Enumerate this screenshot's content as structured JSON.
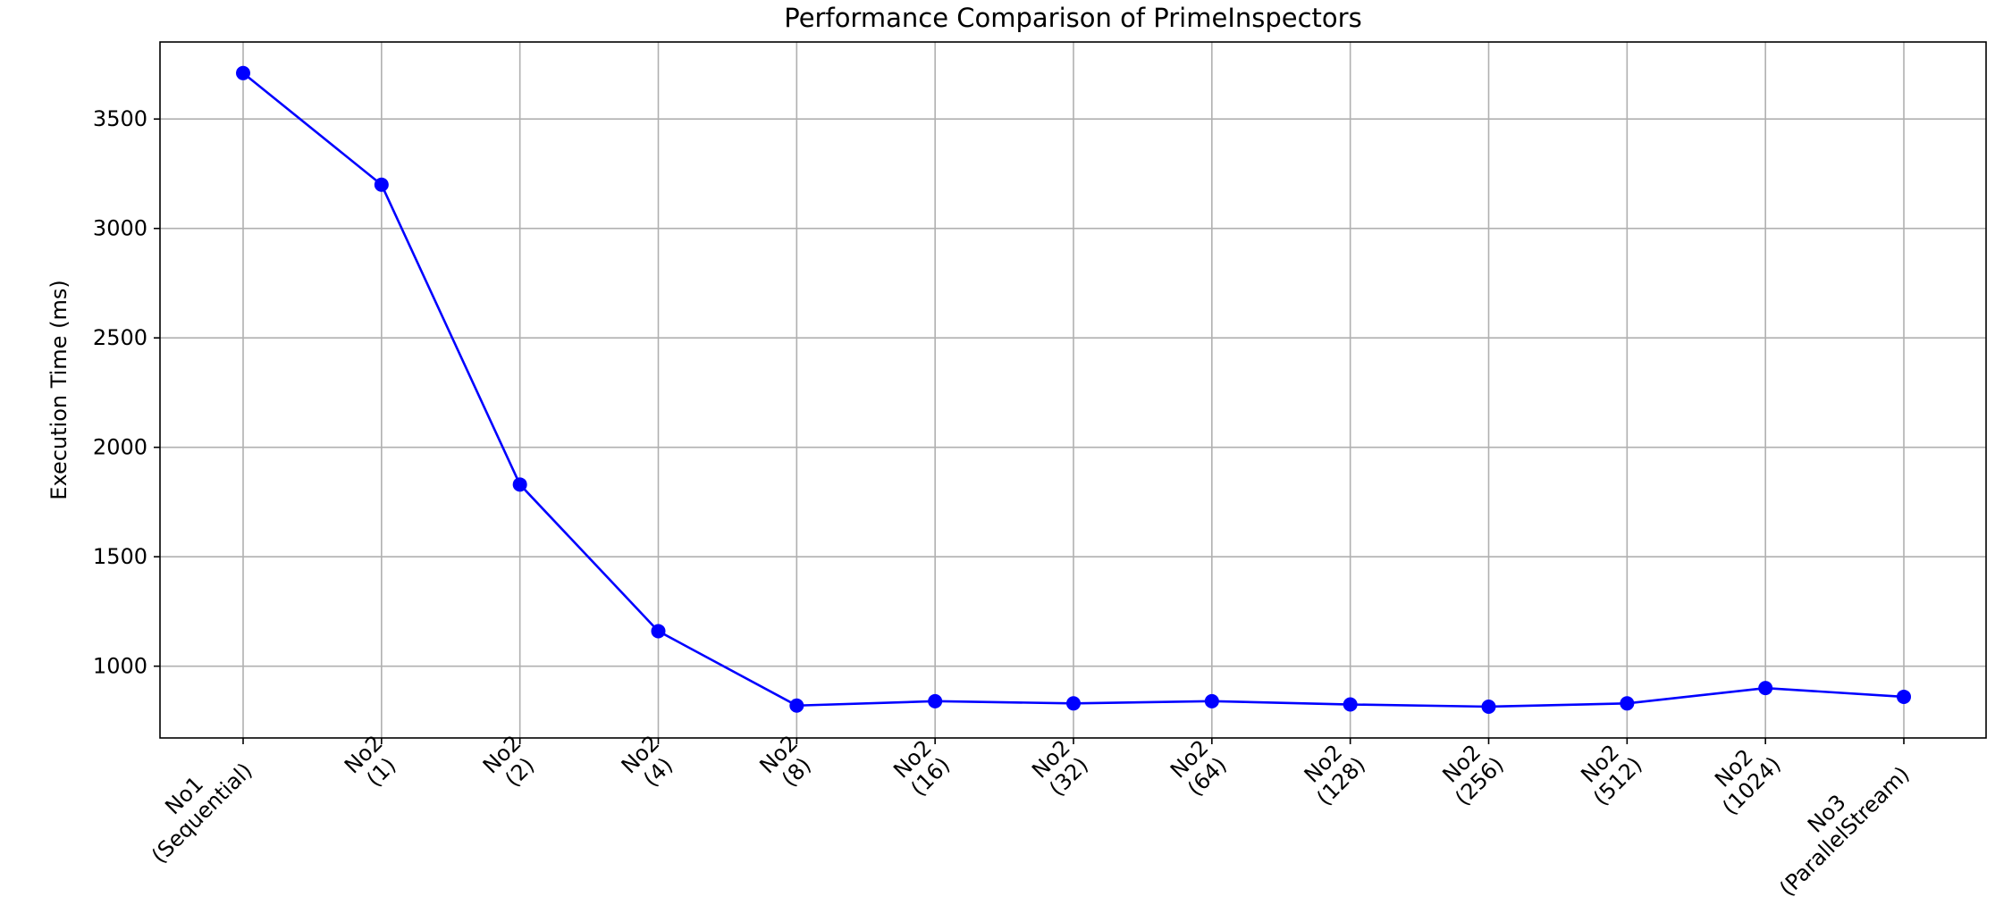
{
  "chart_data": {
    "type": "line",
    "title": "Performance Comparison of PrimeInspectors",
    "xlabel": "",
    "ylabel": "Execution Time (ms)",
    "categories": [
      [
        "No1",
        "(Sequential)"
      ],
      [
        "No2",
        "(1)"
      ],
      [
        "No2",
        "(2)"
      ],
      [
        "No2",
        "(4)"
      ],
      [
        "No2",
        "(8)"
      ],
      [
        "No2",
        "(16)"
      ],
      [
        "No2",
        "(32)"
      ],
      [
        "No2",
        "(64)"
      ],
      [
        "No2",
        "(128)"
      ],
      [
        "No2",
        "(256)"
      ],
      [
        "No2",
        "(512)"
      ],
      [
        "No2",
        "(1024)"
      ],
      [
        "No3",
        "(ParallelStream)"
      ]
    ],
    "series": [
      {
        "values": [
          3710,
          3200,
          1830,
          1160,
          820,
          840,
          830,
          840,
          825,
          815,
          830,
          900,
          860
        ],
        "color": "#0000ff",
        "marker": "circle"
      }
    ],
    "ylim": [
      672,
      3852
    ],
    "yticks": [
      1000,
      1500,
      2000,
      2500,
      3000,
      3500
    ],
    "xtick_rotation": -45,
    "grid": true,
    "legend": "none"
  }
}
